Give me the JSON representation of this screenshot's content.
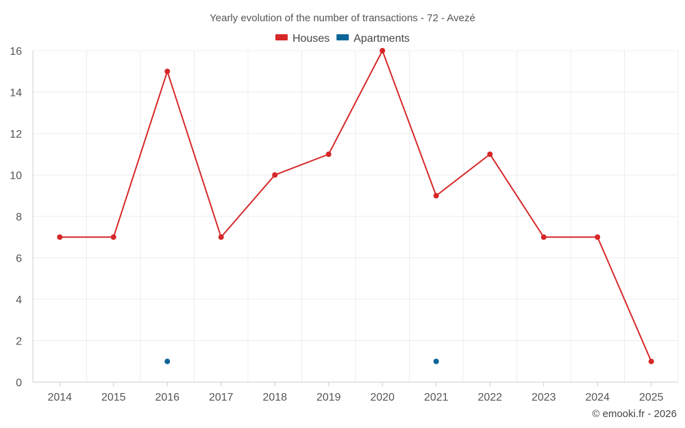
{
  "chart_data": {
    "type": "line",
    "title": "Yearly evolution of the number of transactions - 72 - Avezé",
    "categories": [
      "2014",
      "2015",
      "2016",
      "2017",
      "2018",
      "2019",
      "2020",
      "2021",
      "2022",
      "2023",
      "2024",
      "2025"
    ],
    "ylim": [
      0,
      16
    ],
    "yticks": [
      0,
      2,
      4,
      6,
      8,
      10,
      12,
      14,
      16
    ],
    "legend_position": "top-center",
    "grid": true,
    "series": [
      {
        "name": "Houses",
        "color": "#d62728",
        "values": [
          7,
          7,
          15,
          7,
          10,
          11,
          16,
          9,
          11,
          7,
          7,
          1
        ]
      },
      {
        "name": "Apartments",
        "color": "#0b6596",
        "values": [
          null,
          null,
          1,
          null,
          null,
          null,
          null,
          1,
          null,
          null,
          null,
          null
        ]
      }
    ]
  },
  "credit": "© emooki.fr - 2026"
}
